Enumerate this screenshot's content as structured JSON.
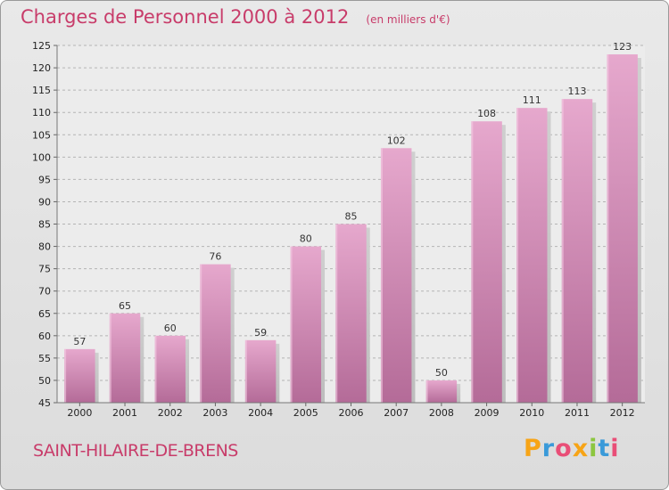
{
  "header": {
    "title": "Charges de Personnel 2000 à 2012",
    "subtitle": "(en milliers d'€)"
  },
  "footer": {
    "commune": "SAINT-HILAIRE-DE-BRENS",
    "logo_text": "Proxiti",
    "logo_colors": [
      "#f7a416",
      "#3a9ad9",
      "#e94e77",
      "#f7a416",
      "#8cc63f",
      "#3a9ad9",
      "#e94e77"
    ]
  },
  "colors": {
    "title": "#c83c6a",
    "bar_top": "#e6a8cd",
    "bar_bottom": "#b46b98",
    "grid": "#b4b4b4"
  },
  "chart_data": {
    "type": "bar",
    "title": "Charges de Personnel 2000 à 2012",
    "subtitle": "(en milliers d'€)",
    "categories": [
      "2000",
      "2001",
      "2002",
      "2003",
      "2004",
      "2005",
      "2006",
      "2007",
      "2008",
      "2009",
      "2010",
      "2011",
      "2012"
    ],
    "values": [
      57,
      65,
      60,
      76,
      59,
      80,
      85,
      102,
      50,
      108,
      111,
      113,
      123
    ],
    "ylim": [
      45,
      125
    ],
    "yticks": [
      45,
      50,
      55,
      60,
      65,
      70,
      75,
      80,
      85,
      90,
      95,
      100,
      105,
      110,
      115,
      120,
      125
    ],
    "grid": "horizontal dashed",
    "data_labels": true
  }
}
